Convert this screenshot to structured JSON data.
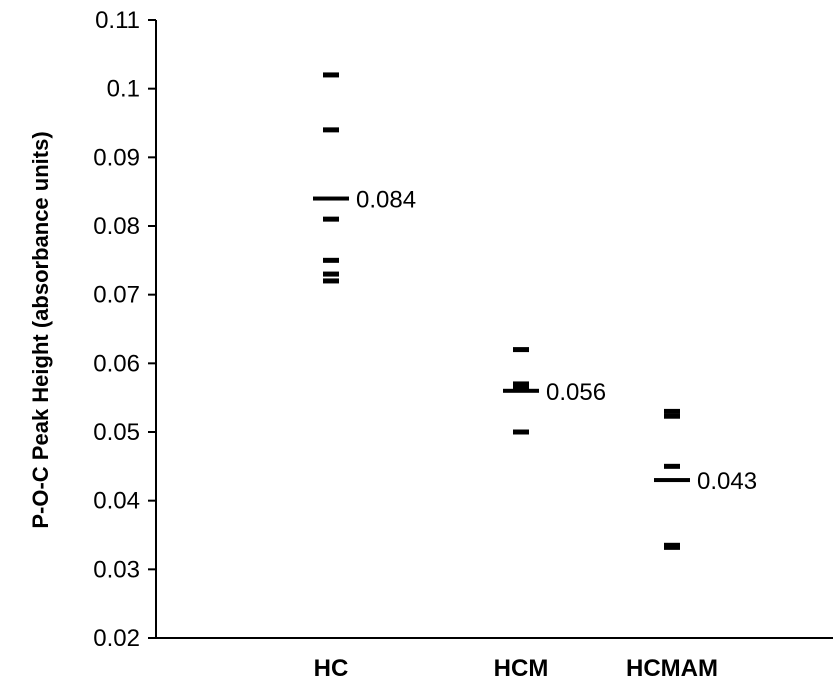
{
  "chart_data": {
    "type": "scatter",
    "title": "",
    "xlabel": "",
    "ylabel": "P-O-C Peak Height (absorbance units)",
    "ylim": [
      0.02,
      0.11
    ],
    "yticks": [
      "0.02",
      "0.03",
      "0.04",
      "0.05",
      "0.06",
      "0.07",
      "0.08",
      "0.09",
      "0.1",
      "0.11"
    ],
    "grid": false,
    "categories": [
      "HC",
      "HCM",
      "HCMAM"
    ],
    "groups": [
      {
        "category": "HC",
        "points": [
          0.102,
          0.094,
          0.081,
          0.075,
          0.073,
          0.072
        ],
        "mean": 0.084,
        "mean_label": "0.084"
      },
      {
        "category": "HCM",
        "points": [
          0.062,
          0.057,
          0.0565,
          0.05
        ],
        "mean": 0.056,
        "mean_label": "0.056"
      },
      {
        "category": "HCMAM",
        "points": [
          0.053,
          0.0523,
          0.045,
          0.0335,
          0.0332
        ],
        "mean": 0.043,
        "mean_label": "0.043"
      }
    ]
  }
}
